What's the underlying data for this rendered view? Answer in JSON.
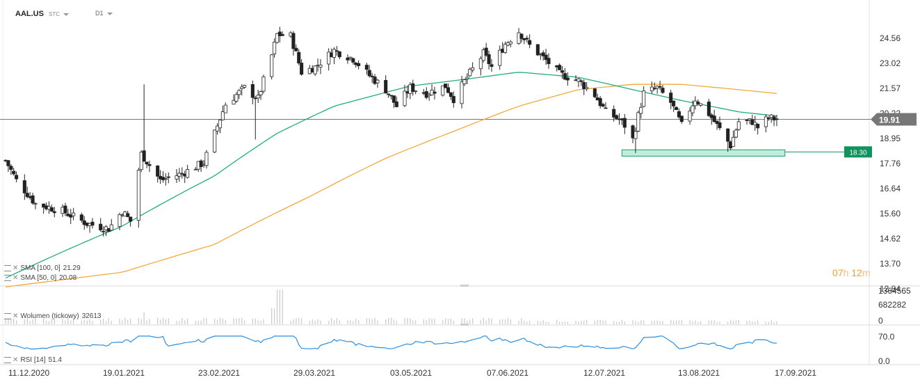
{
  "header": {
    "symbol": "AAL.US",
    "type_label": "STC",
    "interval": "D1"
  },
  "timer": {
    "hours": "07",
    "hours_unit": "h",
    "minutes": "12",
    "minutes_unit": "m"
  },
  "price_panel": {
    "yticks": [
      "24.56",
      "23.02",
      "21.57",
      "20.22",
      "18.95",
      "17.76",
      "16.64",
      "15.60",
      "14.62",
      "13.70",
      "12.84"
    ],
    "current_price": "19.91",
    "level_label": "18.30",
    "legend": [
      {
        "name": "SMA",
        "params": "[100, 0]",
        "value": "21.29",
        "color": "#f2a93b"
      },
      {
        "name": "SMA",
        "params": "[50, 0]",
        "value": "20.08",
        "color": "#1fae7a"
      }
    ]
  },
  "volume_panel": {
    "yticks": [
      "1364565",
      "682282",
      "0"
    ],
    "legend": {
      "name": "Wolumen",
      "params": "(tickowy)",
      "value": "32613"
    }
  },
  "rsi_panel": {
    "yticks": [
      "70.0",
      "0.0"
    ],
    "legend": {
      "name": "RSI",
      "params": "[14]",
      "value": "51.4"
    }
  },
  "xaxis": {
    "labels": [
      "11.12.2020",
      "19.01.2021",
      "23.02.2021",
      "29.03.2021",
      "03.05.2021",
      "07.06.2021",
      "12.07.2021",
      "13.08.2021",
      "17.09.2021"
    ]
  },
  "chart_data": {
    "type": "candlestick",
    "title": "AAL.US",
    "interval": "D1",
    "x_range": [
      "2020-12-07",
      "2021-09-17"
    ],
    "ylim": [
      12.84,
      25.5
    ],
    "close_anchors": [
      [
        "2020-12-07",
        17.9
      ],
      [
        "2020-12-11",
        17.0
      ],
      [
        "2020-12-18",
        16.0
      ],
      [
        "2020-12-28",
        15.7
      ],
      [
        "2021-01-06",
        15.2
      ],
      [
        "2021-01-14",
        15.0
      ],
      [
        "2021-01-19",
        15.7
      ],
      [
        "2021-01-22",
        15.3
      ],
      [
        "2021-01-26",
        18.2
      ],
      [
        "2021-02-02",
        17.0
      ],
      [
        "2021-02-10",
        17.3
      ],
      [
        "2021-02-18",
        17.8
      ],
      [
        "2021-02-22",
        19.2
      ],
      [
        "2021-02-26",
        20.7
      ],
      [
        "2021-03-05",
        21.6
      ],
      [
        "2021-03-10",
        21.0
      ],
      [
        "2021-03-15",
        23.5
      ],
      [
        "2021-03-17",
        24.8
      ],
      [
        "2021-03-22",
        24.7
      ],
      [
        "2021-03-26",
        22.5
      ],
      [
        "2021-03-31",
        22.8
      ],
      [
        "2021-04-07",
        23.8
      ],
      [
        "2021-04-14",
        23.3
      ],
      [
        "2021-04-20",
        22.3
      ],
      [
        "2021-04-26",
        21.5
      ],
      [
        "2021-04-30",
        20.6
      ],
      [
        "2021-05-05",
        21.6
      ],
      [
        "2021-05-11",
        21.3
      ],
      [
        "2021-05-18",
        21.7
      ],
      [
        "2021-05-21",
        21.0
      ],
      [
        "2021-05-26",
        22.2
      ],
      [
        "2021-06-01",
        23.6
      ],
      [
        "2021-06-04",
        22.8
      ],
      [
        "2021-06-09",
        24.2
      ],
      [
        "2021-06-14",
        25.0
      ],
      [
        "2021-06-18",
        24.1
      ],
      [
        "2021-06-24",
        23.2
      ],
      [
        "2021-06-29",
        22.4
      ],
      [
        "2021-07-06",
        22.0
      ],
      [
        "2021-07-12",
        21.2
      ],
      [
        "2021-07-16",
        20.3
      ],
      [
        "2021-07-21",
        19.9
      ],
      [
        "2021-07-23",
        19.6
      ],
      [
        "2021-07-26",
        18.9
      ],
      [
        "2021-07-30",
        21.3
      ],
      [
        "2021-08-04",
        21.6
      ],
      [
        "2021-08-09",
        20.8
      ],
      [
        "2021-08-13",
        19.6
      ],
      [
        "2021-08-18",
        21.0
      ],
      [
        "2021-08-23",
        20.2
      ],
      [
        "2021-08-27",
        19.4
      ],
      [
        "2021-08-31",
        18.6
      ],
      [
        "2021-09-03",
        19.8
      ],
      [
        "2021-09-08",
        19.8
      ],
      [
        "2021-09-10",
        19.5
      ],
      [
        "2021-09-14",
        20.0
      ],
      [
        "2021-09-17",
        19.91
      ]
    ],
    "sma50_anchors": [
      [
        "2020-12-07",
        13.2
      ],
      [
        "2021-01-19",
        15.1
      ],
      [
        "2021-02-22",
        17.2
      ],
      [
        "2021-03-17",
        19.2
      ],
      [
        "2021-04-07",
        20.6
      ],
      [
        "2021-05-05",
        21.7
      ],
      [
        "2021-05-26",
        22.1
      ],
      [
        "2021-06-14",
        22.5
      ],
      [
        "2021-07-06",
        22.2
      ],
      [
        "2021-07-26",
        21.5
      ],
      [
        "2021-08-13",
        20.9
      ],
      [
        "2021-09-03",
        20.3
      ],
      [
        "2021-09-17",
        20.08
      ]
    ],
    "sma100_anchors": [
      [
        "2020-12-07",
        12.9
      ],
      [
        "2021-01-19",
        13.4
      ],
      [
        "2021-02-22",
        14.4
      ],
      [
        "2021-03-29",
        16.3
      ],
      [
        "2021-04-26",
        18.0
      ],
      [
        "2021-05-21",
        19.3
      ],
      [
        "2021-06-14",
        20.6
      ],
      [
        "2021-07-06",
        21.5
      ],
      [
        "2021-07-26",
        21.8
      ],
      [
        "2021-08-13",
        21.8
      ],
      [
        "2021-09-03",
        21.5
      ],
      [
        "2021-09-17",
        21.29
      ]
    ],
    "series": [
      {
        "name": "SMA [100, 0]",
        "last": 21.29,
        "color": "#f2a93b"
      },
      {
        "name": "SMA [50, 0]",
        "last": 20.08,
        "color": "#1fae7a"
      }
    ],
    "horizontal_lines": [
      {
        "value": 19.91,
        "label": "19.91"
      },
      {
        "value": 18.3,
        "label": "18.30"
      }
    ],
    "support_zone": {
      "from_date": "2021-07-22",
      "to_date": "2021-09-20",
      "low": 18.1,
      "high": 18.4
    },
    "volume_ylim": [
      0,
      1364565
    ],
    "volume_peak": {
      "date": "2021-03-18",
      "value": 1300000
    },
    "volume_last": 32613,
    "rsi_ylim": [
      0,
      100
    ],
    "rsi_last": 51.4
  },
  "colors": {
    "up": "#ffffff",
    "down": "#222222",
    "wick": "#222222",
    "zone_fill": "#bfeedd",
    "zone_stroke": "#1a9b6a",
    "label_green": "#11925f",
    "price_line": "#777777"
  }
}
